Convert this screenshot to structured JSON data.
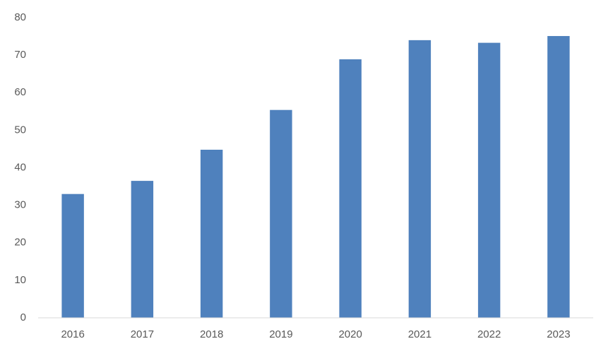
{
  "chart_data": {
    "type": "bar",
    "categories": [
      "2016",
      "2017",
      "2018",
      "2019",
      "2020",
      "2021",
      "2022",
      "2023"
    ],
    "values": [
      33,
      36.5,
      44.8,
      55.4,
      68.9,
      74,
      73.3,
      75.1
    ],
    "color": "#4f81bd",
    "ylim": [
      0,
      80
    ],
    "yticks": [
      0,
      10,
      20,
      30,
      40,
      50,
      60,
      70,
      80
    ],
    "grid": false
  }
}
